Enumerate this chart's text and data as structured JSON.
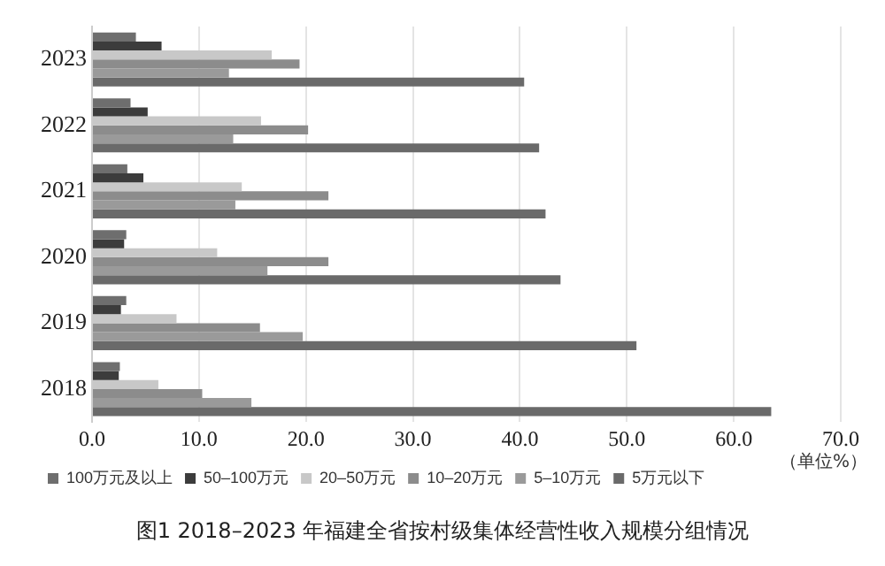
{
  "chart_data": {
    "type": "bar",
    "orientation": "horizontal",
    "title": "图1  2018–2023 年福建全省按村级集体经营性收入规模分组情况",
    "categories": [
      "2023",
      "2022",
      "2021",
      "2020",
      "2019",
      "2018"
    ],
    "series": [
      {
        "name": "100万元及以上",
        "color": "#6e6e6e",
        "values": [
          4.1,
          3.6,
          3.3,
          3.2,
          3.2,
          2.6
        ]
      },
      {
        "name": "50–100万元",
        "color": "#3c3c3c",
        "values": [
          6.5,
          5.2,
          4.8,
          3.0,
          2.7,
          2.5
        ]
      },
      {
        "name": "20–50万元",
        "color": "#c8c8c8",
        "values": [
          16.8,
          15.8,
          14.0,
          11.7,
          7.9,
          6.2
        ]
      },
      {
        "name": "10–20万元",
        "color": "#8c8c8c",
        "values": [
          19.4,
          20.2,
          22.1,
          22.1,
          15.7,
          10.3
        ]
      },
      {
        "name": "5–10万元",
        "color": "#9a9a9a",
        "values": [
          12.8,
          13.2,
          13.4,
          16.4,
          19.7,
          14.9
        ]
      },
      {
        "name": "5万元以下",
        "color": "#6a6a6a",
        "values": [
          40.4,
          41.8,
          42.4,
          43.8,
          50.9,
          63.5
        ]
      }
    ],
    "xlim": [
      0,
      70
    ],
    "xticks": [
      {
        "value": 0,
        "label": "0.0"
      },
      {
        "value": 10,
        "label": "10.0"
      },
      {
        "value": 20,
        "label": "20.0"
      },
      {
        "value": 30,
        "label": "30.0"
      },
      {
        "value": 40,
        "label": "40.0"
      },
      {
        "value": 50,
        "label": "50.0"
      },
      {
        "value": 60,
        "label": "60.0"
      },
      {
        "value": 70,
        "label": "70.0"
      }
    ],
    "grid": "x",
    "legend": "bottom",
    "annotations": [
      "（单位%）"
    ]
  }
}
